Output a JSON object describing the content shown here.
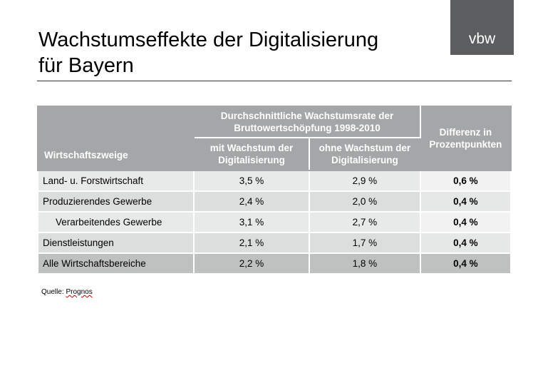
{
  "header": {
    "title": [
      "Wachstumseffekte der Digitalisierung",
      "für Bayern"
    ],
    "logo": "vbw"
  },
  "table": {
    "header": {
      "row_label": "Wirtschaftszweige",
      "group": [
        "Durchschnittliche Wachstumsrate der",
        "Bruttowertschöpfung 1998-2010"
      ],
      "columns": [
        "mit Wachstum der Digitalisierung",
        "ohne Wachstum der Digitalisierung"
      ],
      "difference": "Differenz in Prozentpunkten"
    },
    "rows": [
      [
        "Land- u. Forstwirtschaft",
        "3,5 %",
        "2,9 %",
        "0,6 %"
      ],
      [
        "Produzierendes Gewerbe",
        "2,4 %",
        "2,0 %",
        "0,4 %"
      ],
      [
        "Verarbeitendes Gewerbe",
        "3,1 %",
        "2,7 %",
        "0,4 %"
      ],
      [
        "Dienstleistungen",
        "2,1 %",
        "1,7 %",
        "0,4 %"
      ],
      [
        "Alle Wirtschaftsbereiche",
        "2,2 %",
        "1,8 %",
        "0,4 %"
      ]
    ]
  },
  "footer": {
    "source_label": "Quelle:",
    "source": "Prognos"
  }
}
